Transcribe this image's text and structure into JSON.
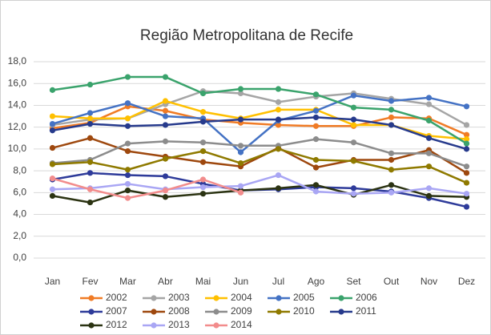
{
  "chart_data": {
    "type": "line",
    "title": "Região Metropolitana de Recife",
    "categories": [
      "Jan",
      "Fev",
      "Mar",
      "Abr",
      "Mai",
      "Jun",
      "Jul",
      "Ago",
      "Set",
      "Out",
      "Nov",
      "Dez"
    ],
    "ylim": [
      0,
      18
    ],
    "yticks": [
      {
        "value": 0,
        "label": "0,0"
      },
      {
        "value": 2,
        "label": "2,0"
      },
      {
        "value": 4,
        "label": "4,0"
      },
      {
        "value": 6,
        "label": "6,0"
      },
      {
        "value": 8,
        "label": "8,0"
      },
      {
        "value": 10,
        "label": "10,0"
      },
      {
        "value": 12,
        "label": "12,0"
      },
      {
        "value": 14,
        "label": "14,0"
      },
      {
        "value": 16,
        "label": "16,0"
      },
      {
        "value": 18,
        "label": "18,0"
      }
    ],
    "grid": true,
    "legend": "bottom",
    "series": [
      {
        "name": "2002",
        "color": "#f07b25",
        "values": [
          11.9,
          12.4,
          13.9,
          13.5,
          12.7,
          12.4,
          12.2,
          12.1,
          12.1,
          12.9,
          12.8,
          11.3
        ]
      },
      {
        "name": "2003",
        "color": "#a5a5a5",
        "values": [
          12.2,
          12.7,
          12.8,
          14.1,
          15.3,
          15.1,
          14.3,
          14.8,
          15.1,
          14.6,
          14.1,
          12.2
        ]
      },
      {
        "name": "2004",
        "color": "#ffc000",
        "values": [
          13.0,
          12.8,
          12.8,
          14.4,
          13.4,
          12.8,
          13.6,
          13.6,
          12.2,
          12.2,
          11.2,
          10.9
        ]
      },
      {
        "name": "2005",
        "color": "#4472c4",
        "values": [
          12.3,
          13.3,
          14.2,
          13.0,
          12.8,
          9.7,
          12.6,
          13.5,
          14.9,
          14.4,
          14.7,
          13.9
        ]
      },
      {
        "name": "2006",
        "color": "#3aa36c",
        "values": [
          15.4,
          15.9,
          16.6,
          16.6,
          15.1,
          15.5,
          15.5,
          15.0,
          13.8,
          13.6,
          12.6,
          10.5
        ]
      },
      {
        "name": "2007",
        "color": "#2e3b9a",
        "values": [
          7.2,
          7.8,
          7.6,
          7.5,
          6.8,
          6.2,
          6.3,
          6.5,
          6.4,
          6.1,
          5.5,
          4.7
        ]
      },
      {
        "name": "2008",
        "color": "#9e480e",
        "values": [
          10.1,
          11.0,
          9.8,
          9.3,
          8.8,
          8.4,
          10.1,
          8.3,
          9.0,
          9.0,
          9.9,
          7.8
        ]
      },
      {
        "name": "2009",
        "color": "#8c8c8c",
        "values": [
          8.7,
          9.0,
          10.5,
          10.7,
          10.6,
          10.3,
          10.3,
          10.9,
          10.6,
          9.6,
          9.6,
          8.4
        ]
      },
      {
        "name": "2010",
        "color": "#8f7a00",
        "values": [
          8.6,
          8.8,
          8.1,
          9.1,
          9.8,
          8.7,
          10.0,
          9.0,
          8.9,
          8.1,
          8.4,
          6.9
        ]
      },
      {
        "name": "2011",
        "color": "#263a8c",
        "values": [
          11.7,
          12.3,
          12.1,
          12.2,
          12.5,
          12.7,
          12.7,
          12.9,
          12.7,
          12.2,
          11.0,
          10.0
        ]
      },
      {
        "name": "2012",
        "color": "#2b3312",
        "values": [
          5.7,
          5.1,
          6.2,
          5.6,
          5.9,
          6.2,
          6.4,
          6.7,
          5.8,
          6.7,
          5.7,
          5.6
        ]
      },
      {
        "name": "2013",
        "color": "#a9a6f4",
        "values": [
          6.3,
          6.4,
          6.8,
          6.3,
          6.5,
          6.6,
          7.6,
          6.1,
          5.9,
          6.0,
          6.4,
          5.9
        ]
      },
      {
        "name": "2014",
        "color": "#f28c8c",
        "values": [
          7.3,
          6.3,
          5.5,
          6.2,
          7.2,
          6.0,
          null,
          null,
          null,
          null,
          null,
          null
        ]
      }
    ]
  }
}
